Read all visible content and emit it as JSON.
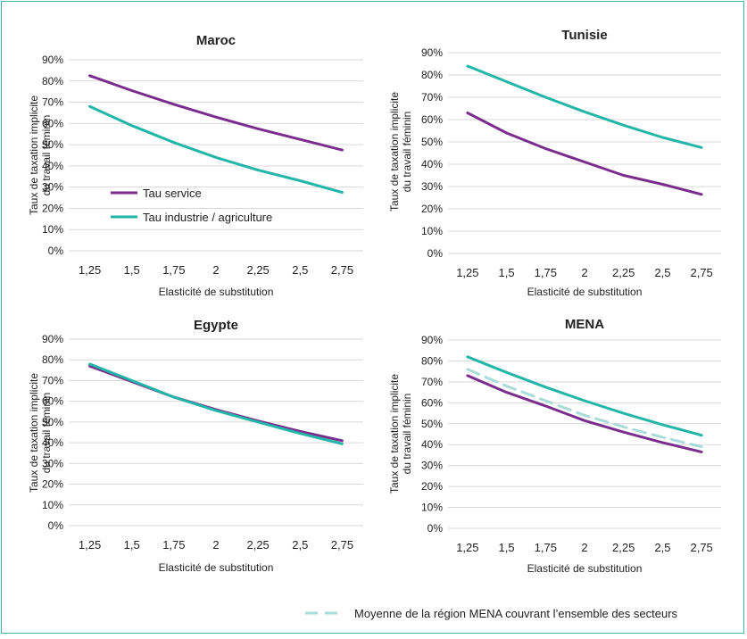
{
  "chart_data": [
    {
      "type": "line",
      "title": "Maroc",
      "xlabel": "Elasticité de substitution",
      "ylabel": [
        "Taux de taxation implicite",
        "du travail féminin"
      ],
      "categories": [
        "1,25",
        "1,5",
        "1,75",
        "2",
        "2,25",
        "2,5",
        "2,75"
      ],
      "ylim": [
        0,
        90
      ],
      "yticks": [
        "0%",
        "10%",
        "20%",
        "30%",
        "40%",
        "50%",
        "60%",
        "70%",
        "80%",
        "90%"
      ],
      "grid": true,
      "legend_position": "left",
      "series": [
        {
          "name": "Tau service",
          "color": "#7b2d8e",
          "dashed": false,
          "values": [
            82.5,
            75.5,
            69,
            63,
            57.5,
            52.5,
            47.5
          ]
        },
        {
          "name": "Tau industrie / agriculture",
          "color": "#22b5a8",
          "dashed": false,
          "values": [
            68,
            59,
            51,
            44,
            38,
            33,
            27.5
          ]
        }
      ]
    },
    {
      "type": "line",
      "title": "Tunisie",
      "xlabel": "Elasticité de substitution",
      "ylabel": [
        "Taux de taxation implicite",
        "du travail féminin"
      ],
      "categories": [
        "1,25",
        "1,5",
        "1,75",
        "2",
        "2,25",
        "2,5",
        "2,75"
      ],
      "ylim": [
        0,
        90
      ],
      "yticks": [
        "0%",
        "10%",
        "20%",
        "30%",
        "40%",
        "50%",
        "60%",
        "70%",
        "80%",
        "90%"
      ],
      "grid": true,
      "series": [
        {
          "color": "#7b2d8e",
          "dashed": false,
          "values": [
            63,
            54,
            47,
            41,
            35,
            31,
            26.5
          ]
        },
        {
          "color": "#22b5a8",
          "dashed": false,
          "values": [
            84,
            77,
            70,
            63.5,
            57.5,
            52,
            47.5
          ]
        }
      ]
    },
    {
      "type": "line",
      "title": "Egypte",
      "xlabel": "Elasticité de substitution",
      "ylabel": [
        "Taux de taxation implicite",
        "du travail féminin"
      ],
      "categories": [
        "1,25",
        "1,5",
        "1,75",
        "2",
        "2,25",
        "2,5",
        "2,75"
      ],
      "ylim": [
        0,
        90
      ],
      "yticks": [
        "0%",
        "10%",
        "20%",
        "30%",
        "40%",
        "50%",
        "60%",
        "70%",
        "80%",
        "90%"
      ],
      "grid": true,
      "series": [
        {
          "color": "#7b2d8e",
          "dashed": false,
          "values": [
            77,
            69.5,
            62,
            56,
            50.5,
            45.5,
            41
          ]
        },
        {
          "color": "#22b5a8",
          "dashed": false,
          "values": [
            78,
            70,
            62,
            55.5,
            50,
            44.5,
            39.5
          ]
        }
      ]
    },
    {
      "type": "line",
      "title": "MENA",
      "xlabel": "Elasticité de substitution",
      "ylabel": [
        "Taux de taxation implicite",
        "du travail féminin"
      ],
      "categories": [
        "1,25",
        "1,5",
        "1,75",
        "2",
        "2,25",
        "2,5",
        "2,75"
      ],
      "ylim": [
        0,
        90
      ],
      "yticks": [
        "0%",
        "10%",
        "20%",
        "30%",
        "40%",
        "50%",
        "60%",
        "70%",
        "80%",
        "90%"
      ],
      "grid": true,
      "legend_position": "bottom-right",
      "series": [
        {
          "color": "#7b2d8e",
          "dashed": false,
          "values": [
            73,
            65,
            58.5,
            51.5,
            46,
            41,
            36.5
          ]
        },
        {
          "color": "#22b5a8",
          "dashed": false,
          "values": [
            82,
            74.5,
            67.5,
            61,
            55,
            49.5,
            44.5
          ]
        },
        {
          "name": "Moyenne de la région MENA couvrant l’ensemble des secteurs",
          "color": "#a8dcd8",
          "dashed": true,
          "values": [
            76,
            68,
            61,
            54,
            48.5,
            43.5,
            39
          ]
        }
      ]
    }
  ]
}
